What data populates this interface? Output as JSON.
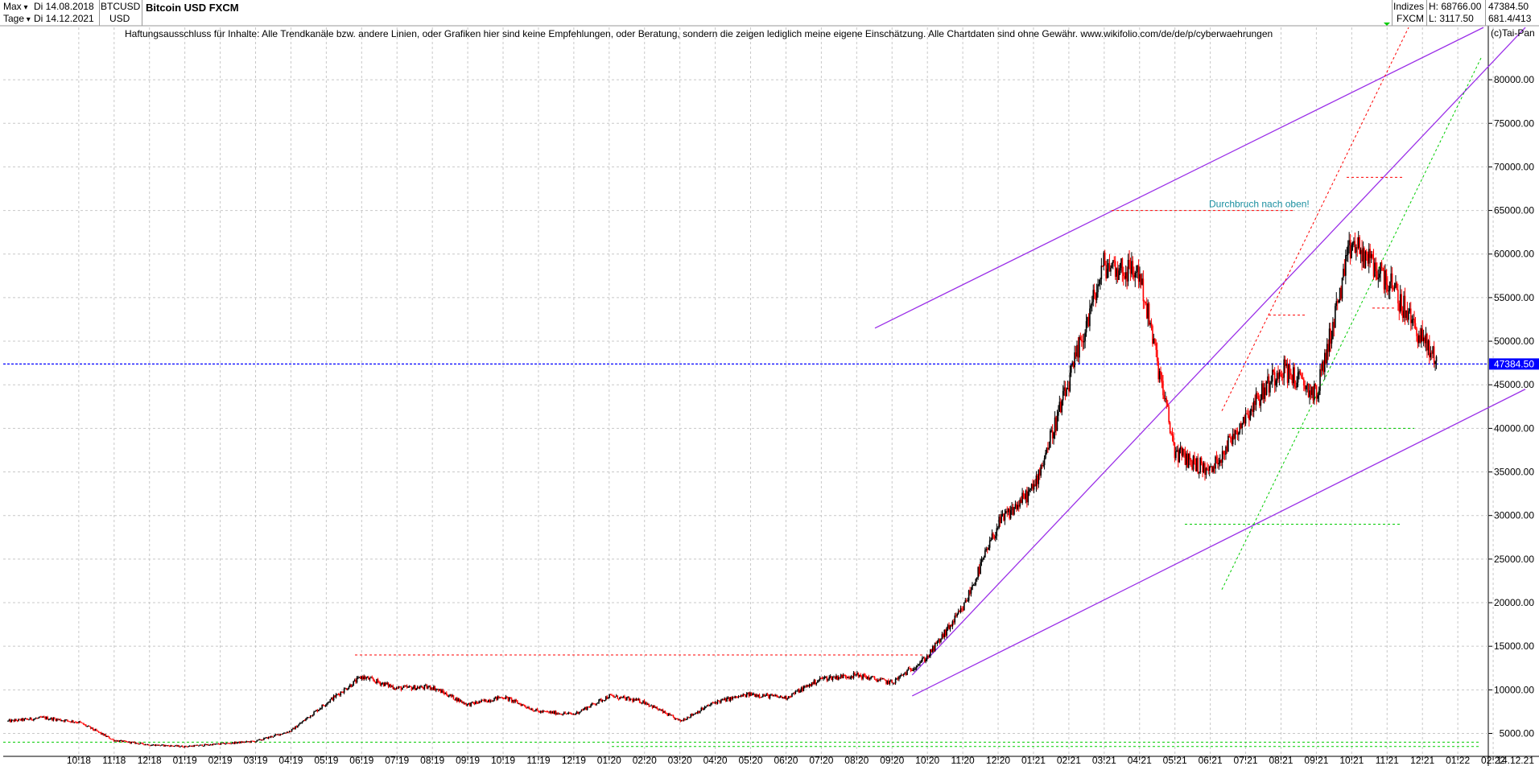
{
  "header": {
    "range_selector": "Max",
    "period_selector": "Tage",
    "date_from": "Di 14.08.2018",
    "date_to": "Di 14.12.2021",
    "symbol": "BTCUSD",
    "currency": "USD",
    "title": "Bitcoin USD FXCM",
    "index_label": "Indizes",
    "exchange": "FXCM",
    "high_label": "H: 68766.00",
    "low_label": "L: 3117.50",
    "last_value": "47384.50",
    "bar_count": "681.4/413"
  },
  "disclaimer": "Haftungsausschluss für Inhalte: Alle Trendkanäle bzw. andere Linien, oder Grafiken hier sind keine Empfehlungen, oder Beratung, sondern die zeigen lediglich meine eigene Einschätzung. Alle Chartdaten sind ohne Gewähr.  www.wikifolio.com/de/de/p/cyberwaehrungen",
  "copyright": "(c)Tai-Pan",
  "colors": {
    "up": "#000000",
    "down": "#ff0000",
    "channel": "#9b30e8",
    "current_line": "#0000ff",
    "support": "#00cc00",
    "resistance": "#ff0000",
    "grid": "#c8c8c8",
    "annotation": "#1a8fa0"
  },
  "chart_data": {
    "type": "candlestick",
    "title": "Bitcoin USD FXCM",
    "ylim": [
      3117.5,
      86500
    ],
    "y_ticks": [
      5000,
      10000,
      15000,
      20000,
      25000,
      30000,
      35000,
      40000,
      45000,
      50000,
      55000,
      60000,
      65000,
      70000,
      75000,
      80000
    ],
    "y_tick_labels": [
      "5000.00",
      "10000.00",
      "15000.00",
      "20000.00",
      "25000.00",
      "30000.00",
      "35000.00",
      "40000.00",
      "45000.00",
      "50000.00",
      "55000.00",
      "60000.00",
      "65000.00",
      "70000.00",
      "75000.00",
      "80000.00"
    ],
    "x_ticks": [
      "10.18",
      "11.18",
      "12.18",
      "01.19",
      "02.19",
      "03.19",
      "04.19",
      "05.19",
      "06.19",
      "07.19",
      "08.19",
      "09.19",
      "10.19",
      "11.19",
      "12.19",
      "01.20",
      "02.20",
      "03.20",
      "04.20",
      "05.20",
      "06.20",
      "07.20",
      "08.20",
      "09.20",
      "10.20",
      "11.20",
      "12.20",
      "01.21",
      "02.21",
      "03.21",
      "04.21",
      "05.21",
      "06.21",
      "07.21",
      "08.21",
      "09.21",
      "10.21",
      "11.21",
      "12.21",
      "01.22",
      "02.22"
    ],
    "x_axis_end_label": "14.12.21",
    "grid": true,
    "current_value": 47384.5,
    "current_value_label": "47384.50",
    "high": 68766.0,
    "low": 3117.5,
    "series": [
      {
        "x": [
          "2018-08",
          "2018-09",
          "2018-10",
          "2018-11",
          "2018-12",
          "2019-01",
          "2019-02",
          "2019-03",
          "2019-04",
          "2019-05",
          "2019-06",
          "2019-07",
          "2019-08",
          "2019-09",
          "2019-10",
          "2019-11",
          "2019-12",
          "2020-01",
          "2020-02",
          "2020-03",
          "2020-04",
          "2020-05",
          "2020-06",
          "2020-07",
          "2020-08",
          "2020-09",
          "2020-10",
          "2020-11",
          "2020-12",
          "2021-01",
          "2021-02",
          "2021-03",
          "2021-04",
          "2021-05",
          "2021-06",
          "2021-07",
          "2021-08",
          "2021-09",
          "2021-10",
          "2021-11",
          "2021-12"
        ],
        "values": [
          6400,
          6800,
          6300,
          4200,
          3700,
          3500,
          3800,
          4100,
          5300,
          8500,
          11500,
          10200,
          10300,
          8300,
          9200,
          7500,
          7200,
          9300,
          8600,
          6400,
          8600,
          9500,
          9100,
          11300,
          11700,
          10800,
          13800,
          19300,
          29000,
          33100,
          45200,
          58800,
          57800,
          37300,
          35000,
          41500,
          47100,
          43800,
          61300,
          57000,
          47384.5
        ]
      }
    ],
    "trend_lines": [
      {
        "from": [
          "2020-09",
          11700
        ],
        "to": [
          "2022-02",
          86000
        ]
      },
      {
        "from": [
          "2020-09",
          9300
        ],
        "to": [
          "2022-02",
          44500
        ]
      }
    ],
    "annotations": [
      "Durchbruch nach oben!"
    ]
  }
}
